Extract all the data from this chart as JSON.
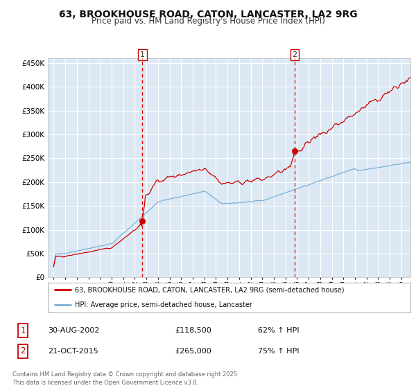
{
  "title": "63, BROOKHOUSE ROAD, CATON, LANCASTER, LA2 9RG",
  "subtitle": "Price paid vs. HM Land Registry's House Price Index (HPI)",
  "title_fontsize": 10,
  "subtitle_fontsize": 8.5,
  "background_color": "#ffffff",
  "plot_bg_color": "#dce9f5",
  "grid_color": "#ffffff",
  "red_line_color": "#cc0000",
  "blue_line_color": "#7aaed6",
  "purchase1_x": 2002.66,
  "purchase1_y": 118500,
  "purchase1_label": "1",
  "purchase2_x": 2015.8,
  "purchase2_y": 265000,
  "purchase2_label": "2",
  "vline_color": "#dd0000",
  "marker_color": "#cc0000",
  "ylim": [
    0,
    460000
  ],
  "xlim": [
    1994.5,
    2025.8
  ],
  "yticks": [
    0,
    50000,
    100000,
    150000,
    200000,
    250000,
    300000,
    350000,
    400000,
    450000
  ],
  "xticks": [
    1995,
    1996,
    1997,
    1998,
    1999,
    2000,
    2001,
    2002,
    2003,
    2004,
    2005,
    2006,
    2007,
    2008,
    2009,
    2010,
    2011,
    2012,
    2013,
    2014,
    2015,
    2016,
    2017,
    2018,
    2019,
    2020,
    2021,
    2022,
    2023,
    2024,
    2025
  ],
  "legend_entry1": "63, BROOKHOUSE ROAD, CATON, LANCASTER, LA2 9RG (semi-detached house)",
  "legend_entry2": "HPI: Average price, semi-detached house, Lancaster",
  "table_row1_num": "1",
  "table_row1_date": "30-AUG-2002",
  "table_row1_price": "£118,500",
  "table_row1_hpi": "62% ↑ HPI",
  "table_row2_num": "2",
  "table_row2_date": "21-OCT-2015",
  "table_row2_price": "£265,000",
  "table_row2_hpi": "75% ↑ HPI",
  "footer": "Contains HM Land Registry data © Crown copyright and database right 2025.\nThis data is licensed under the Open Government Licence v3.0."
}
